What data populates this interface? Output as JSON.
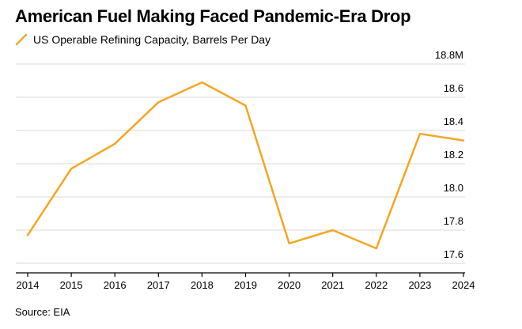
{
  "header": {
    "title": "American Fuel Making Faced Pandemic-Era Drop"
  },
  "footer": {
    "source": "Source: EIA"
  },
  "colors": {
    "series": "#f5a623",
    "grid": "#d9d9d9"
  },
  "chart_data": {
    "type": "line",
    "title": "American Fuel Making Faced Pandemic-Era Drop",
    "xlabel": "",
    "ylabel": "",
    "x": [
      2014,
      2015,
      2016,
      2017,
      2018,
      2019,
      2020,
      2021,
      2022,
      2023,
      2024
    ],
    "xtick_labels": [
      "2014",
      "2015",
      "2016",
      "2017",
      "2018",
      "2019",
      "2020",
      "2021",
      "2022",
      "2023",
      "2024"
    ],
    "series": [
      {
        "name": "US Operable Refining Capacity, Barrels Per Day",
        "values": [
          17.77,
          18.17,
          18.32,
          18.57,
          18.69,
          18.55,
          17.72,
          17.8,
          17.69,
          18.38,
          18.34
        ]
      }
    ],
    "ylim": [
      17.55,
      18.8
    ],
    "yticks": [
      17.6,
      17.8,
      18.0,
      18.2,
      18.4,
      18.6,
      18.8
    ],
    "ytick_labels": [
      "17.6",
      "17.8",
      "18.0",
      "18.2",
      "18.4",
      "18.6",
      "18.8M"
    ],
    "legend_position": "top-left",
    "grid": true
  }
}
